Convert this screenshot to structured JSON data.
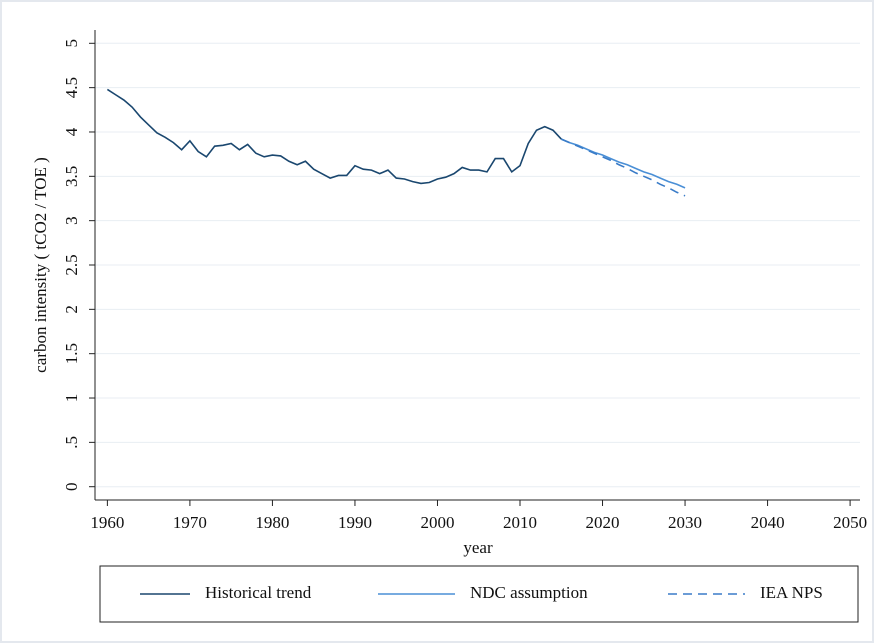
{
  "chart_data": {
    "type": "line",
    "x_label": "year",
    "y_label": "carbon intensity ( tCO2 / TOE )",
    "x": [
      1960,
      1961,
      1962,
      1963,
      1964,
      1965,
      1966,
      1967,
      1968,
      1969,
      1970,
      1971,
      1972,
      1973,
      1974,
      1975,
      1976,
      1977,
      1978,
      1979,
      1980,
      1981,
      1982,
      1983,
      1984,
      1985,
      1986,
      1987,
      1988,
      1989,
      1990,
      1991,
      1992,
      1993,
      1994,
      1995,
      1996,
      1997,
      1998,
      1999,
      2000,
      2001,
      2002,
      2003,
      2004,
      2005,
      2006,
      2007,
      2008,
      2009,
      2010,
      2011,
      2012,
      2013,
      2014,
      2015,
      2016,
      2017,
      2018,
      2019,
      2020,
      2021,
      2022,
      2023,
      2024,
      2025,
      2026,
      2027,
      2028,
      2029,
      2030
    ],
    "series": [
      {
        "name": "Historical trend",
        "color": "#1a476f",
        "dash": "solid",
        "values": [
          4.48,
          4.42,
          4.36,
          4.28,
          4.17,
          4.08,
          3.99,
          3.94,
          3.88,
          3.8,
          3.9,
          3.78,
          3.72,
          3.84,
          3.85,
          3.87,
          3.8,
          3.86,
          3.76,
          3.72,
          3.74,
          3.73,
          3.67,
          3.63,
          3.67,
          3.58,
          3.53,
          3.48,
          3.51,
          3.51,
          3.62,
          3.58,
          3.57,
          3.53,
          3.57,
          3.48,
          3.47,
          3.44,
          3.42,
          3.43,
          3.47,
          3.49,
          3.53,
          3.6,
          3.57,
          3.57,
          3.55,
          3.7,
          3.7,
          3.55,
          3.62,
          3.87,
          4.02,
          4.06,
          4.02,
          3.92,
          null,
          null,
          null,
          null,
          null,
          null,
          null,
          null,
          null,
          null,
          null,
          null,
          null,
          null,
          null
        ]
      },
      {
        "name": "NDC assumption",
        "color": "#4a8fd6",
        "dash": "solid",
        "values": [
          null,
          null,
          null,
          null,
          null,
          null,
          null,
          null,
          null,
          null,
          null,
          null,
          null,
          null,
          null,
          null,
          null,
          null,
          null,
          null,
          null,
          null,
          null,
          null,
          null,
          null,
          null,
          null,
          null,
          null,
          null,
          null,
          null,
          null,
          null,
          null,
          null,
          null,
          null,
          null,
          null,
          null,
          null,
          null,
          null,
          null,
          null,
          null,
          null,
          null,
          null,
          null,
          null,
          null,
          null,
          3.92,
          3.88,
          3.85,
          3.81,
          3.77,
          3.74,
          3.7,
          3.66,
          3.63,
          3.59,
          3.55,
          3.52,
          3.48,
          3.44,
          3.41,
          3.37
        ]
      },
      {
        "name": "IEA NPS",
        "color": "#3a7cc8",
        "dash": "dashed",
        "values": [
          null,
          null,
          null,
          null,
          null,
          null,
          null,
          null,
          null,
          null,
          null,
          null,
          null,
          null,
          null,
          null,
          null,
          null,
          null,
          null,
          null,
          null,
          null,
          null,
          null,
          null,
          null,
          null,
          null,
          null,
          null,
          null,
          null,
          null,
          null,
          null,
          null,
          null,
          null,
          null,
          null,
          null,
          null,
          null,
          null,
          null,
          null,
          null,
          null,
          null,
          null,
          null,
          null,
          null,
          null,
          3.92,
          3.88,
          3.84,
          3.8,
          3.76,
          3.72,
          3.68,
          3.63,
          3.59,
          3.54,
          3.5,
          3.46,
          3.41,
          3.37,
          3.32,
          3.28
        ]
      }
    ],
    "xlim": [
      1958.5,
      2051.2
    ],
    "ylim": [
      -0.15,
      5.15
    ],
    "xticks": [
      1960,
      1970,
      1980,
      1990,
      2000,
      2010,
      2020,
      2030,
      2040,
      2050
    ],
    "yticks": [
      0,
      {
        "value": 0.5,
        "label": ".5"
      },
      1,
      1.5,
      2,
      2.5,
      3,
      3.5,
      4,
      4.5,
      5
    ],
    "grid": true,
    "legend": "bottom"
  }
}
